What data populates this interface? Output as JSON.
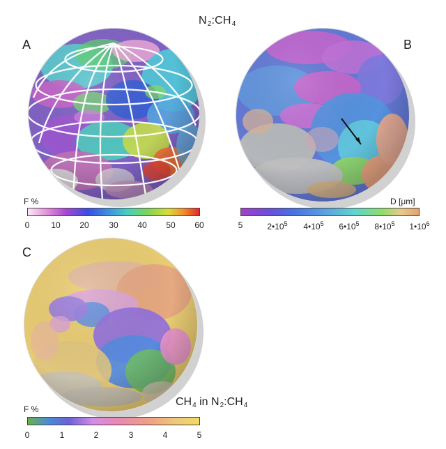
{
  "title": {
    "main": "N",
    "main_sub": "2",
    "main_mid": ":CH",
    "main_sub2": "4"
  },
  "panels": {
    "a": "A",
    "b": "B",
    "c": "C"
  },
  "legends": {
    "a": {
      "label": "F %",
      "ticks": [
        "0",
        "10",
        "20",
        "30",
        "40",
        "50",
        "60"
      ]
    },
    "b": {
      "label": "D [μm]",
      "ticks": [
        "5",
        "2•10",
        "4•10",
        "6•10",
        "8•10",
        "1•10"
      ],
      "tick_exponents": [
        "",
        "5",
        "5",
        "5",
        "5",
        "6"
      ]
    },
    "c": {
      "label": "F %",
      "ticks": [
        "0",
        "1",
        "2",
        "3",
        "4",
        "5"
      ],
      "caption_a": "CH",
      "caption_sub": "4",
      "caption_b": " in N",
      "caption_sub2": "2",
      "caption_c": ":CH",
      "caption_sub3": "4"
    }
  },
  "colors": {
    "scale_a": [
      "#fbe7f5",
      "#e089d9",
      "#ab46d3",
      "#3a4de2",
      "#3f96df",
      "#45cfc0",
      "#7ed557",
      "#d9db37",
      "#f28c2e",
      "#e22828"
    ],
    "scale_b": [
      "#a43fc9",
      "#6b4fda",
      "#4774e1",
      "#5aa0e1",
      "#61d4d0",
      "#8bde6c",
      "#e8c88c",
      "#e3a36e"
    ],
    "scale_c": [
      "#6ab04c",
      "#4a8bd7",
      "#6b61d9",
      "#d58ce7",
      "#ea88b1",
      "#ef9f86",
      "#f0c77b",
      "#f1da64"
    ]
  }
}
